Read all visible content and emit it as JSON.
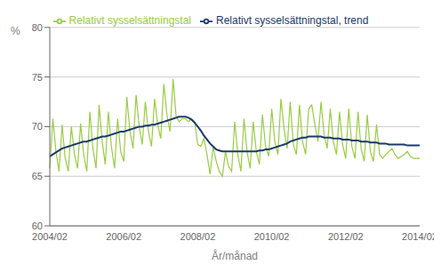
{
  "chart_data": {
    "type": "line",
    "xlabel": "År/månad",
    "ylabel": "%",
    "legend": "top",
    "grid": true,
    "ylim": [
      60,
      80
    ],
    "yticks": [
      60,
      65,
      70,
      75,
      80
    ],
    "categories": [
      "2004/02",
      null,
      null,
      null,
      null,
      null,
      null,
      null,
      null,
      null,
      null,
      null,
      null,
      null,
      null,
      null,
      null,
      null,
      null,
      null,
      null,
      null,
      null,
      null,
      "2006/02",
      null,
      null,
      null,
      null,
      null,
      null,
      null,
      null,
      null,
      null,
      null,
      null,
      null,
      null,
      null,
      null,
      null,
      null,
      null,
      null,
      null,
      null,
      null,
      "2008/02",
      null,
      null,
      null,
      null,
      null,
      null,
      null,
      null,
      null,
      null,
      null,
      null,
      null,
      null,
      null,
      null,
      null,
      null,
      null,
      null,
      null,
      null,
      null,
      "2010/02",
      null,
      null,
      null,
      null,
      null,
      null,
      null,
      null,
      null,
      null,
      null,
      null,
      null,
      null,
      null,
      null,
      null,
      null,
      null,
      null,
      null,
      null,
      null,
      "2012/02",
      null,
      null,
      null,
      null,
      null,
      null,
      null,
      null,
      null,
      null,
      null,
      null,
      null,
      null,
      null,
      null,
      null,
      null,
      null,
      null,
      null,
      null,
      null,
      "2014/02"
    ],
    "series": [
      {
        "name": "Relativt sysselsättningstal",
        "color": "#99cc44",
        "values": [
          65.8,
          70.8,
          67.5,
          65.5,
          70.2,
          66.8,
          65.5,
          70.0,
          67.2,
          65.8,
          70.3,
          67.2,
          65.5,
          71.5,
          67.8,
          65.8,
          72.2,
          68.5,
          66.2,
          71.5,
          68.0,
          65.8,
          70.8,
          67.5,
          66.5,
          73.0,
          69.5,
          67.8,
          73.2,
          70.0,
          68.2,
          72.5,
          69.5,
          68.0,
          72.8,
          70.2,
          68.8,
          74.3,
          71.2,
          69.5,
          74.8,
          71.0,
          70.5,
          70.8,
          70.8,
          70.5,
          70.8,
          70.5,
          68.2,
          68.0,
          68.8,
          67.2,
          65.2,
          68.0,
          66.5,
          65.5,
          65.0,
          67.5,
          66.0,
          65.5,
          70.5,
          67.2,
          65.5,
          70.8,
          67.5,
          65.8,
          70.5,
          67.5,
          66.2,
          71.2,
          68.0,
          67.0,
          71.8,
          68.5,
          67.2,
          72.8,
          69.8,
          67.8,
          72.5,
          68.2,
          67.2,
          72.2,
          68.5,
          67.2,
          71.8,
          72.2,
          70.2,
          68.5,
          72.5,
          69.2,
          67.8,
          71.8,
          68.5,
          67.2,
          71.5,
          68.2,
          66.8,
          71.8,
          68.0,
          66.8,
          71.5,
          67.8,
          66.5,
          71.2,
          67.5,
          66.5,
          70.2,
          67.2,
          66.8,
          67.2,
          67.5,
          67.8,
          67.2,
          66.8,
          67.0,
          67.2,
          67.5,
          67.0,
          66.8,
          66.8,
          66.8
        ]
      },
      {
        "name": "Relativt sysselsättningstal, trend",
        "color": "#1a3a6b",
        "values": [
          67.0,
          67.2,
          67.4,
          67.6,
          67.8,
          67.9,
          68.0,
          68.1,
          68.2,
          68.3,
          68.4,
          68.5,
          68.5,
          68.6,
          68.7,
          68.8,
          68.9,
          69.0,
          69.0,
          69.1,
          69.2,
          69.3,
          69.4,
          69.5,
          69.5,
          69.6,
          69.7,
          69.8,
          69.9,
          70.0,
          70.0,
          70.1,
          70.1,
          70.2,
          70.2,
          70.3,
          70.4,
          70.5,
          70.6,
          70.7,
          70.8,
          70.9,
          71.0,
          71.0,
          71.0,
          70.9,
          70.7,
          70.4,
          70.0,
          69.6,
          69.1,
          68.7,
          68.3,
          68.0,
          67.7,
          67.6,
          67.5,
          67.5,
          67.5,
          67.5,
          67.5,
          67.5,
          67.5,
          67.5,
          67.5,
          67.5,
          67.5,
          67.5,
          67.6,
          67.6,
          67.7,
          67.7,
          67.8,
          67.9,
          68.0,
          68.1,
          68.2,
          68.3,
          68.5,
          68.6,
          68.7,
          68.8,
          68.9,
          68.9,
          69.0,
          69.0,
          69.0,
          69.0,
          69.0,
          68.9,
          68.9,
          68.9,
          68.8,
          68.8,
          68.8,
          68.7,
          68.7,
          68.7,
          68.6,
          68.6,
          68.6,
          68.5,
          68.5,
          68.5,
          68.4,
          68.4,
          68.4,
          68.3,
          68.3,
          68.3,
          68.2,
          68.2,
          68.2,
          68.2,
          68.2,
          68.2,
          68.1,
          68.1,
          68.1,
          68.1,
          68.1
        ]
      }
    ]
  }
}
